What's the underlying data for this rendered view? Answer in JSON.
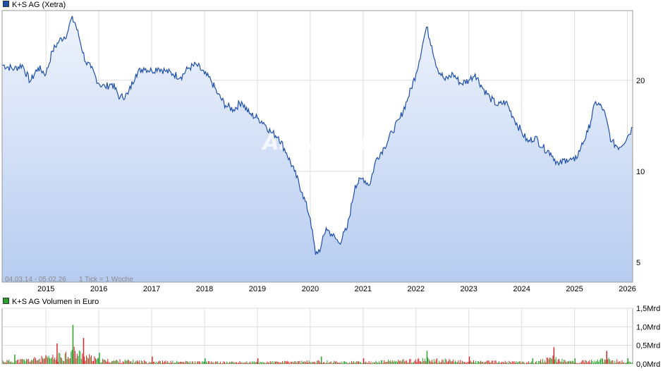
{
  "colors": {
    "price_line": "#1f4fa8",
    "price_area_top": "#eef3fc",
    "price_area_bottom": "#b7ccf0",
    "volume_up": "#2ca02c",
    "volume_down": "#d62728",
    "grid": "#dddddd"
  },
  "watermark": "ARIVA.DE",
  "chart_data": [
    {
      "type": "area",
      "title": "K+S AG (Xetra)",
      "legend": "K+S AG (Xetra)",
      "legend_position": "top-left",
      "date_range": "04.03.14 - 05.02.26",
      "tick_info": "1 Tick = 1 Woche",
      "x_ticks": [
        "2015",
        "2016",
        "2017",
        "2018",
        "2019",
        "2020",
        "2021",
        "2022",
        "2023",
        "2024",
        "2025",
        "2026"
      ],
      "y_ticks": [
        "5",
        "10",
        "20"
      ],
      "y_scale": "log",
      "ylim": [
        4.3,
        34
      ],
      "grid": true,
      "series": [
        {
          "name": "K+S AG (Xetra)",
          "x": [
            2014.17,
            2014.4,
            2014.55,
            2014.7,
            2014.85,
            2015.0,
            2015.12,
            2015.25,
            2015.4,
            2015.48,
            2015.55,
            2015.62,
            2015.75,
            2015.85,
            2016.0,
            2016.12,
            2016.25,
            2016.4,
            2016.55,
            2016.7,
            2016.85,
            2017.0,
            2017.12,
            2017.25,
            2017.4,
            2017.55,
            2017.7,
            2017.85,
            2018.0,
            2018.12,
            2018.25,
            2018.4,
            2018.55,
            2018.7,
            2018.85,
            2019.0,
            2019.12,
            2019.25,
            2019.4,
            2019.55,
            2019.7,
            2019.85,
            2020.0,
            2020.1,
            2020.2,
            2020.3,
            2020.4,
            2020.55,
            2020.7,
            2020.85,
            2021.0,
            2021.12,
            2021.25,
            2021.4,
            2021.55,
            2021.7,
            2021.85,
            2022.0,
            2022.12,
            2022.2,
            2022.3,
            2022.4,
            2022.55,
            2022.7,
            2022.85,
            2023.0,
            2023.12,
            2023.25,
            2023.4,
            2023.55,
            2023.7,
            2023.85,
            2024.0,
            2024.12,
            2024.25,
            2024.4,
            2024.55,
            2024.7,
            2024.85,
            2025.0,
            2025.12,
            2025.25,
            2025.4,
            2025.55,
            2025.7,
            2025.85,
            2026.0,
            2026.1
          ],
          "values": [
            22.5,
            21.8,
            22.5,
            19.8,
            22.0,
            21.0,
            25.0,
            27.0,
            28.5,
            32.0,
            31.0,
            28.0,
            23.0,
            22.0,
            19.5,
            19.0,
            19.5,
            17.5,
            18.0,
            21.0,
            22.0,
            21.5,
            22.0,
            21.5,
            21.0,
            20.5,
            22.0,
            22.5,
            21.0,
            20.0,
            18.0,
            16.5,
            16.0,
            17.0,
            15.5,
            15.0,
            14.5,
            13.5,
            13.0,
            11.5,
            10.0,
            8.5,
            7.0,
            5.3,
            5.6,
            6.5,
            6.2,
            5.8,
            6.5,
            9.0,
            9.5,
            9.0,
            11.0,
            12.0,
            13.5,
            15.0,
            17.5,
            21.0,
            26.0,
            30.0,
            26.0,
            22.0,
            20.0,
            21.0,
            19.5,
            20.0,
            21.0,
            19.0,
            17.5,
            16.5,
            17.0,
            15.0,
            13.5,
            12.5,
            13.0,
            12.0,
            11.5,
            10.5,
            11.0,
            10.8,
            12.0,
            13.5,
            17.0,
            16.0,
            12.5,
            12.0,
            13.0,
            14.0
          ]
        }
      ]
    },
    {
      "type": "bar",
      "title": "K+S AG Volumen in Euro",
      "legend": "K+S AG Volumen in Euro",
      "legend_position": "top-left",
      "x_ticks": [
        "2015",
        "2016",
        "2017",
        "2018",
        "2019",
        "2020",
        "2021",
        "2022",
        "2023",
        "2024",
        "2025",
        "2026"
      ],
      "y_ticks": [
        "0,0Mrd",
        "0,5Mrd",
        "1,0Mrd",
        "1,5Mrd"
      ],
      "ylim": [
        0,
        1.5
      ],
      "unit": "Mrd Euro",
      "grid": true,
      "series": [
        {
          "name": "K+S AG Volumen in Euro",
          "x": [
            2014.4,
            2015.2,
            2015.5,
            2015.7,
            2016.0,
            2017.0,
            2018.0,
            2019.0,
            2020.2,
            2021.0,
            2022.2,
            2023.0,
            2024.2,
            2024.6,
            2025.0,
            2025.6,
            2026.0
          ],
          "values": [
            0.25,
            0.55,
            1.05,
            0.7,
            0.3,
            0.2,
            0.15,
            0.15,
            0.2,
            0.15,
            0.35,
            0.2,
            0.15,
            0.45,
            0.15,
            0.35,
            0.15
          ]
        }
      ]
    }
  ]
}
